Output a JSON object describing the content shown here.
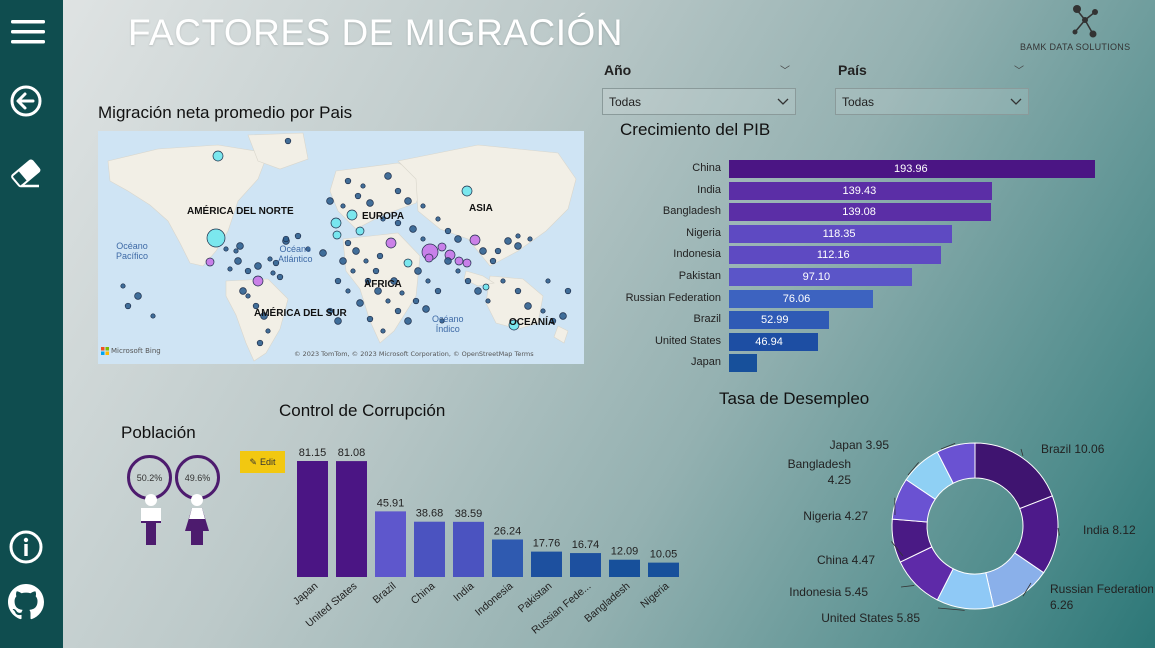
{
  "nav": {
    "menu_icon": "hamburger-icon",
    "back_icon": "back-arrow-icon",
    "clear_icon": "eraser-icon",
    "info_icon": "info-icon",
    "github_icon": "github-icon"
  },
  "header": {
    "title": "FACTORES DE MIGRACIÓN",
    "brand": "BAMK DATA SOLUTIONS"
  },
  "slicers": {
    "year": {
      "label": "Año",
      "value": "Todas"
    },
    "country": {
      "label": "País",
      "value": "Todas"
    }
  },
  "map": {
    "title": "Migración neta promedio por Pais",
    "continents": [
      "AMÉRICA DEL NORTE",
      "EUROPA",
      "ASIA",
      "ÁFRICA",
      "AMÉRICA DEL SUR",
      "OCEANÍA"
    ],
    "oceans": [
      "Océano\nPacífico",
      "Océano\nAtlántico",
      "Océano\nÍndico"
    ],
    "bing": "Microsoft Bing",
    "attribution": "© 2023 TomTom, © 2023 Microsoft Corporation, © OpenStreetMap  Terms",
    "colors": {
      "positive": "#6ee5ee",
      "negative": "#c774e8",
      "neutral": "#2f5f8f"
    }
  },
  "chart_data": [
    {
      "type": "bar",
      "title": "Crecimiento del PIB",
      "orientation": "horizontal",
      "categories": [
        "China",
        "India",
        "Bangladesh",
        "Nigeria",
        "Indonesia",
        "Pakistan",
        "Russian Federation",
        "Brazil",
        "United States",
        "Japan"
      ],
      "values": [
        193.96,
        139.43,
        139.08,
        118.35,
        112.16,
        97.1,
        76.06,
        52.99,
        46.94,
        null
      ],
      "labels": [
        "193.96",
        "139.43",
        "139.08",
        "118.35",
        "112.16",
        "97.10",
        "76.06",
        "52.99",
        "46.94",
        ""
      ],
      "colors": [
        "#4b1584",
        "#5b2ea6",
        "#5b2ea6",
        "#5e4ac2",
        "#5e4ac2",
        "#5b55c8",
        "#3d63c0",
        "#2f5ab5",
        "#1d4ea3",
        "#17509b"
      ]
    },
    {
      "type": "bar",
      "title": "Control de Corrupción",
      "categories": [
        "Japan",
        "United States",
        "Brazil",
        "China",
        "India",
        "Indonesia",
        "Pakistan",
        "Russian Fede...",
        "Bangladesh",
        "Nigeria"
      ],
      "values": [
        81.15,
        81.08,
        45.91,
        38.68,
        38.59,
        26.24,
        17.76,
        16.74,
        12.09,
        10.05
      ],
      "labels": [
        "81.15",
        "81.08",
        "45.91",
        "38.68",
        "38.59",
        "26.24",
        "17.76",
        "16.74",
        "12.09",
        "10.05"
      ],
      "colors": [
        "#4b1584",
        "#4b1584",
        "#5e57cc",
        "#4b53c0",
        "#4b53c0",
        "#2f5ab0",
        "#1d509f",
        "#1d509f",
        "#17509b",
        "#17509b"
      ]
    },
    {
      "type": "pie",
      "title": "Tasa de Desempleo",
      "categories": [
        "Brazil",
        "India",
        "Russian Federation",
        "United States",
        "Indonesia",
        "China",
        "Nigeria",
        "Bangladesh",
        "Japan"
      ],
      "values": [
        10.06,
        8.12,
        6.26,
        5.85,
        5.45,
        4.47,
        4.27,
        4.25,
        3.95
      ],
      "labels": [
        "Brazil 10.06",
        "India 8.12",
        "Russian Federation\n6.26",
        "United States 5.85",
        "Indonesia 5.45",
        "China 4.47",
        "Nigeria 4.27",
        "Bangladesh\n4.25",
        "Japan 3.95"
      ],
      "colors": [
        "#3f1470",
        "#4d1a8a",
        "#8ab0ea",
        "#8fc9f6",
        "#5e2aa8",
        "#4a1a85",
        "#6a52d2",
        "#8fd0f4",
        "#6a52d2"
      ]
    }
  ],
  "population": {
    "title": "Población",
    "male_pct": "50.2%",
    "female_pct": "49.6%",
    "edit_label": "Edit"
  }
}
